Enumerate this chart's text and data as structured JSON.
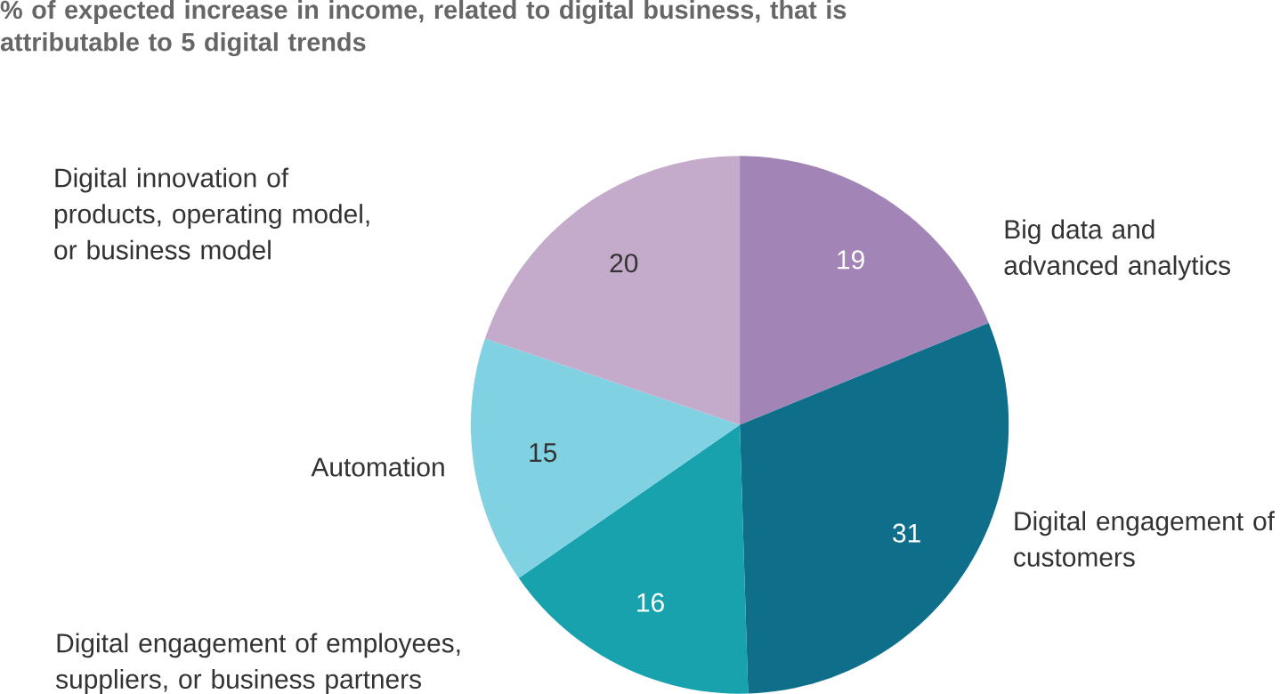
{
  "chart_data": {
    "type": "pie",
    "title": "% of expected increase in income, related to digital business, that is attributable to 5 digital trends",
    "categories": [
      "Big data and advanced analytics",
      "Digital engagement of customers",
      "Digital engagement of employees, suppliers, or business partners",
      "Automation",
      "Digital innovation of products, operating model, or business model"
    ],
    "values": [
      19,
      31,
      16,
      15,
      20
    ],
    "colors": [
      "#a285b6",
      "#0f6f8b",
      "#17a2ae",
      "#80d1e1",
      "#c4abcc"
    ],
    "data_labels": true
  }
}
